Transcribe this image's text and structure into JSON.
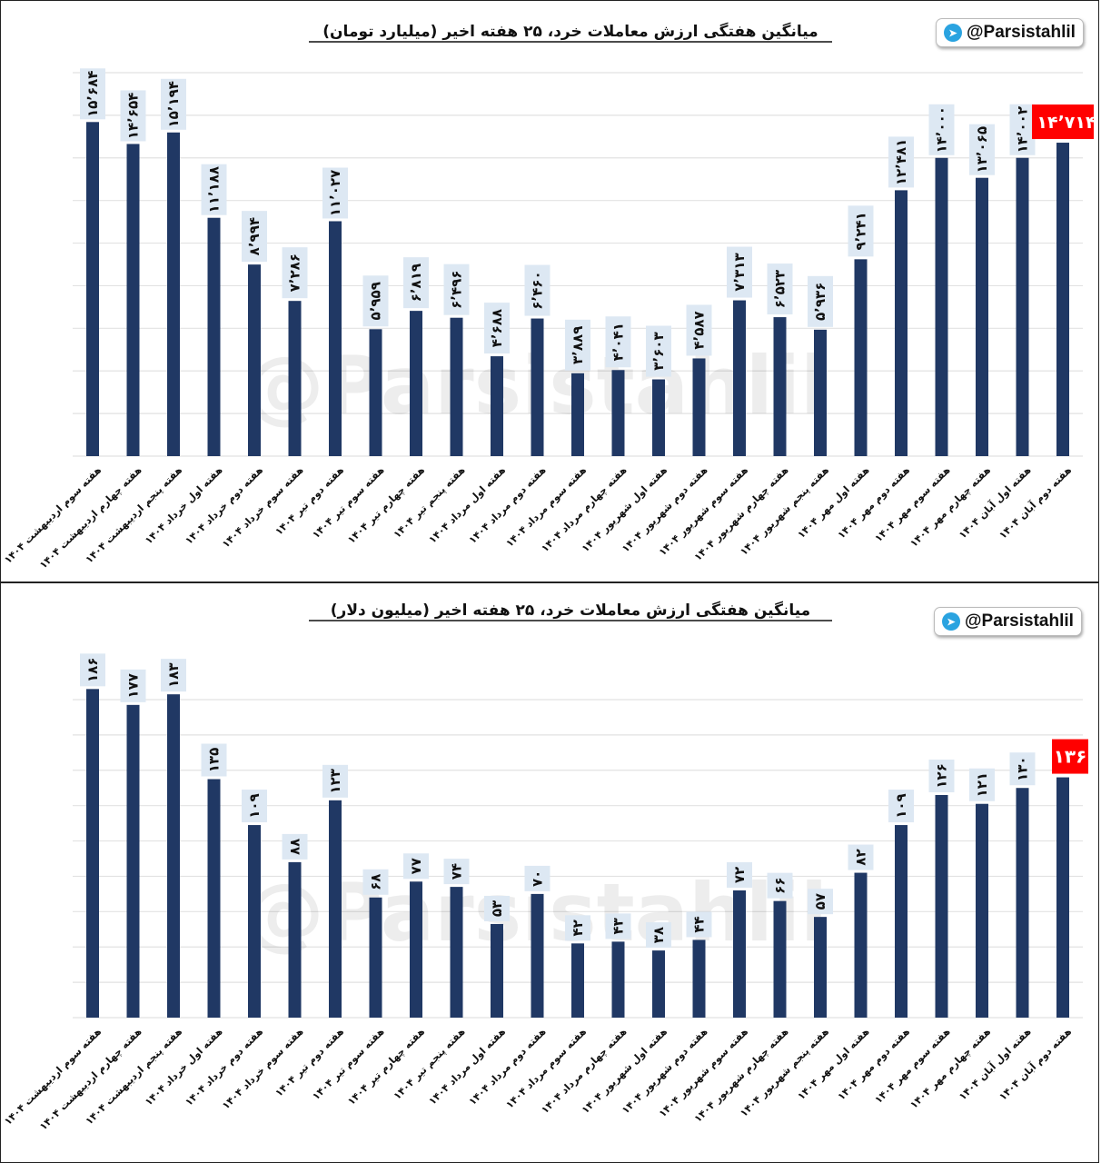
{
  "brand": {
    "handle": "@Parsistahlil",
    "watermark": "@Parsistahlil",
    "icon": "telegram-icon"
  },
  "colors": {
    "bar": "#203864",
    "label_bg": "#dde8f3",
    "highlight": "#ff0000",
    "grid": "#e2e2e2"
  },
  "chart_data": [
    {
      "type": "bar",
      "title": "میانگین هفتگی ارزش معاملات خرد، ۲۵ هفته اخیر (میلیارد تومان)",
      "ylim": [
        0,
        18000
      ],
      "grid": true,
      "categories": [
        "هفته سوم اردیبهشت ۱۴۰۴",
        "هفته چهارم اردیبهشت ۱۴۰۴",
        "هفته پنجم اردیبهشت ۱۴۰۴",
        "هفته اول خرداد ۱۴۰۴",
        "هفته دوم خرداد ۱۴۰۴",
        "هفته سوم خرداد ۱۴۰۴",
        "هفته دوم تیر ۱۴۰۴",
        "هفته سوم تیر ۱۴۰۴",
        "هفته چهارم تیر ۱۴۰۴",
        "هفته پنجم تیر ۱۴۰۴",
        "هفته اول مرداد ۱۴۰۴",
        "هفته دوم مرداد ۱۴۰۴",
        "هفته سوم مرداد ۱۴۰۴",
        "هفته چهارم مرداد ۱۴۰۴",
        "هفته اول شهریور ۱۴۰۴",
        "هفته دوم شهریور ۱۴۰۴",
        "هفته سوم شهریور ۱۴۰۴",
        "هفته چهارم شهریور ۱۴۰۴",
        "هفته پنجم شهریور ۱۴۰۴",
        "هفته اول مهر ۱۴۰۴",
        "هفته دوم مهر ۱۴۰۴",
        "هفته سوم مهر ۱۴۰۴",
        "هفته چهارم مهر ۱۴۰۴",
        "هفته اول آبان ۱۴۰۴",
        "هفته دوم آبان ۱۴۰۴"
      ],
      "values": [
        15684,
        14654,
        15194,
        11188,
        8994,
        7286,
        11027,
        5959,
        6819,
        6496,
        4688,
        6460,
        3889,
        4041,
        3603,
        4587,
        7313,
        6523,
        5936,
        9241,
        12481,
        14000,
        13065,
        14002,
        14714
      ],
      "labels": [
        "۱۵٬۶۸۴",
        "۱۴٬۶۵۴",
        "۱۵٬۱۹۴",
        "۱۱٬۱۸۸",
        "۸٬۹۹۴",
        "۷٬۲۸۶",
        "۱۱٬۰۲۷",
        "۵٬۹۵۹",
        "۶٬۸۱۹",
        "۶٬۴۹۶",
        "۴٬۶۸۸",
        "۶٬۴۶۰",
        "۳٬۸۸۹",
        "۴٬۰۴۱",
        "۳٬۶۰۳",
        "۴٬۵۸۷",
        "۷٬۳۱۳",
        "۶٬۵۲۳",
        "۵٬۹۳۶",
        "۹٬۲۴۱",
        "۱۲٬۴۸۱",
        "۱۴٬۰۰۰",
        "۱۳٬۰۶۵",
        "۱۴٬۰۰۲",
        "۱۴٬۷۱۴"
      ],
      "highlight_last": true
    },
    {
      "type": "bar",
      "title": "میانگین هفتگی ارزش معاملات خرد، ۲۵ هفته اخیر (میلیون دلار)",
      "ylim": [
        0,
        180
      ],
      "grid": true,
      "categories": [
        "هفته سوم اردیبهشت ۱۴۰۴",
        "هفته چهارم اردیبهشت ۱۴۰۴",
        "هفته پنجم اردیبهشت ۱۴۰۴",
        "هفته اول خرداد ۱۴۰۴",
        "هفته دوم خرداد ۱۴۰۴",
        "هفته سوم خرداد ۱۴۰۴",
        "هفته دوم تیر ۱۴۰۴",
        "هفته سوم تیر ۱۴۰۴",
        "هفته چهارم تیر ۱۴۰۴",
        "هفته پنجم تیر ۱۴۰۴",
        "هفته اول مرداد ۱۴۰۴",
        "هفته دوم مرداد ۱۴۰۴",
        "هفته سوم مرداد ۱۴۰۴",
        "هفته چهارم مرداد ۱۴۰۴",
        "هفته اول شهریور ۱۴۰۴",
        "هفته دوم شهریور ۱۴۰۴",
        "هفته سوم شهریور ۱۴۰۴",
        "هفته چهارم شهریور ۱۴۰۴",
        "هفته پنجم شهریور ۱۴۰۴",
        "هفته اول مهر ۱۴۰۴",
        "هفته دوم مهر ۱۴۰۴",
        "هفته سوم مهر ۱۴۰۴",
        "هفته چهارم مهر ۱۴۰۴",
        "هفته اول آبان ۱۴۰۴",
        "هفته دوم آبان ۱۴۰۴"
      ],
      "values": [
        186,
        177,
        183,
        135,
        109,
        88,
        123,
        68,
        77,
        74,
        53,
        70,
        42,
        43,
        38,
        44,
        72,
        66,
        57,
        82,
        109,
        126,
        121,
        130,
        136
      ],
      "labels": [
        "۱۸۶",
        "۱۷۷",
        "۱۸۳",
        "۱۳۵",
        "۱۰۹",
        "۸۸",
        "۱۲۳",
        "۶۸",
        "۷۷",
        "۷۴",
        "۵۳",
        "۷۰",
        "۴۲",
        "۴۳",
        "۳۸",
        "۴۴",
        "۷۲",
        "۶۶",
        "۵۷",
        "۸۲",
        "۱۰۹",
        "۱۲۶",
        "۱۲۱",
        "۱۳۰",
        "۱۳۶"
      ],
      "highlight_last": true
    }
  ]
}
